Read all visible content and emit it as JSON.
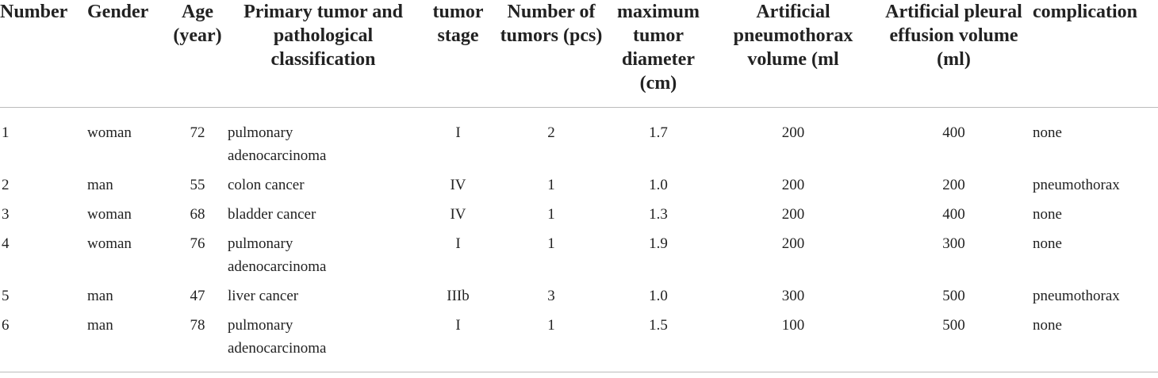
{
  "table": {
    "header": [
      "Number",
      "Gender",
      "Age (year)",
      "Primary tumor and pathological classification",
      "tumor stage",
      "Number of tumors (pcs)",
      "maximum tumor diameter (cm)",
      "Artificial pneumothorax volume (ml",
      "Artificial pleural effusion volume (ml)",
      "complication"
    ],
    "rows": [
      [
        "1",
        "woman",
        "72",
        "pulmonary adenocarcinoma",
        "I",
        "2",
        "1.7",
        "200",
        "400",
        "none"
      ],
      [
        "2",
        "man",
        "55",
        "colon cancer",
        "IV",
        "1",
        "1.0",
        "200",
        "200",
        "pneumothorax"
      ],
      [
        "3",
        "woman",
        "68",
        "bladder cancer",
        "IV",
        "1",
        "1.3",
        "200",
        "400",
        "none"
      ],
      [
        "4",
        "woman",
        "76",
        "pulmonary adenocarcinoma",
        "I",
        "1",
        "1.9",
        "200",
        "300",
        "none"
      ],
      [
        "5",
        "man",
        "47",
        "liver cancer",
        "IIIb",
        "3",
        "1.0",
        "300",
        "500",
        "pneumothorax"
      ],
      [
        "6",
        "man",
        "78",
        "pulmonary adenocarcinoma",
        "I",
        "1",
        "1.5",
        "100",
        "500",
        "none"
      ]
    ]
  }
}
